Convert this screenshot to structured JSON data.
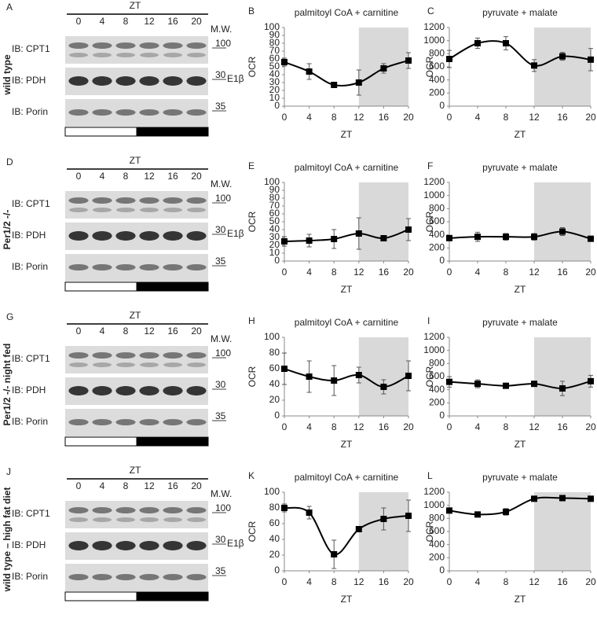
{
  "blots": [
    {
      "letter": "A",
      "side_label": "wild type",
      "zt_label": "ZT",
      "lanes": [
        "0",
        "4",
        "8",
        "12",
        "16",
        "20"
      ],
      "mw_label": "M.W.",
      "rows": [
        {
          "label": "IB: CPT1",
          "mw": "100"
        },
        {
          "label": "IB: PDH",
          "mw": "30",
          "extra": "E1β"
        },
        {
          "label": "IB: Porin",
          "mw": "35"
        }
      ]
    },
    {
      "letter": "D",
      "side_label": "Per1/2 -/-",
      "zt_label": "ZT",
      "lanes": [
        "0",
        "4",
        "8",
        "12",
        "16",
        "20"
      ],
      "mw_label": "M.W.",
      "rows": [
        {
          "label": "IB: CPT1",
          "mw": "100"
        },
        {
          "label": "IB: PDH",
          "mw": "30",
          "extra": "E1β"
        },
        {
          "label": "IB: Porin",
          "mw": "35"
        }
      ]
    },
    {
      "letter": "G",
      "side_label": "Per1/2 -/- night fed",
      "zt_label": "ZT",
      "lanes": [
        "0",
        "4",
        "8",
        "12",
        "16",
        "20"
      ],
      "mw_label": "M.W.",
      "rows": [
        {
          "label": "IB: CPT1",
          "mw": "100"
        },
        {
          "label": "IB: PDH",
          "mw": "30"
        },
        {
          "label": "IB: Porin",
          "mw": "35"
        }
      ]
    },
    {
      "letter": "J",
      "side_label": "wild type – high fat diet",
      "zt_label": "ZT",
      "lanes": [
        "0",
        "4",
        "8",
        "12",
        "16",
        "20"
      ],
      "mw_label": "M.W.",
      "rows": [
        {
          "label": "IB: CPT1",
          "mw": "100"
        },
        {
          "label": "IB: PDH",
          "mw": "30",
          "extra": "E1β"
        },
        {
          "label": "IB: Porin",
          "mw": "35"
        }
      ]
    }
  ],
  "chart_data": [
    {
      "type": "line",
      "letter": "B",
      "title": "palmitoyl CoA + carnitine",
      "ylabel": "OCR",
      "xlabel": "ZT",
      "x": [
        0,
        4,
        8,
        12,
        16,
        20
      ],
      "values": [
        56,
        44,
        27,
        30,
        48,
        58
      ],
      "errors": [
        5,
        10,
        3,
        16,
        6,
        10
      ],
      "xlim": [
        0,
        20
      ],
      "xticks": [
        0,
        4,
        8,
        12,
        16,
        20
      ],
      "ylim": [
        0,
        100
      ],
      "yticks": [
        0,
        10,
        20,
        30,
        40,
        50,
        60,
        70,
        80,
        90,
        100
      ],
      "shaded": [
        12,
        20
      ],
      "color": "#000000"
    },
    {
      "type": "line",
      "letter": "C",
      "title": "pyruvate + malate",
      "ylabel": "OCR",
      "xlabel": "ZT",
      "x": [
        0,
        4,
        8,
        12,
        16,
        20
      ],
      "values": [
        720,
        960,
        960,
        620,
        760,
        710
      ],
      "errors": [
        130,
        80,
        100,
        90,
        60,
        170
      ],
      "xlim": [
        0,
        20
      ],
      "xticks": [
        0,
        4,
        8,
        12,
        16,
        20
      ],
      "ylim": [
        0,
        1200
      ],
      "yticks": [
        0,
        200,
        400,
        600,
        800,
        1000,
        1200
      ],
      "shaded": [
        12,
        20
      ],
      "color": "#000000"
    },
    {
      "type": "line",
      "letter": "E",
      "title": "palmitoyl CoA + carnitine",
      "ylabel": "OCR",
      "xlabel": "ZT",
      "x": [
        0,
        4,
        8,
        12,
        16,
        20
      ],
      "values": [
        25,
        26,
        28,
        35,
        29,
        40
      ],
      "errors": [
        6,
        8,
        12,
        20,
        3,
        14
      ],
      "xlim": [
        0,
        20
      ],
      "xticks": [
        0,
        4,
        8,
        12,
        16,
        20
      ],
      "ylim": [
        0,
        100
      ],
      "yticks": [
        0,
        10,
        20,
        30,
        40,
        50,
        60,
        70,
        80,
        90,
        100
      ],
      "shaded": [
        12,
        20
      ],
      "color": "#000000"
    },
    {
      "type": "line",
      "letter": "F",
      "title": "pyruvate + malate",
      "ylabel": "OCR",
      "xlabel": "ZT",
      "x": [
        0,
        4,
        8,
        12,
        16,
        20
      ],
      "values": [
        350,
        370,
        370,
        370,
        450,
        340
      ],
      "errors": [
        40,
        70,
        50,
        50,
        60,
        20
      ],
      "xlim": [
        0,
        20
      ],
      "xticks": [
        0,
        4,
        8,
        12,
        16,
        20
      ],
      "ylim": [
        0,
        1200
      ],
      "yticks": [
        0,
        200,
        400,
        600,
        800,
        1000,
        1200
      ],
      "shaded": [
        12,
        20
      ],
      "color": "#000000"
    },
    {
      "type": "line",
      "letter": "H",
      "title": "palmitoyl CoA + carnitine",
      "ylabel": "OCR",
      "xlabel": "ZT",
      "x": [
        0,
        4,
        8,
        12,
        16,
        20
      ],
      "values": [
        60,
        50,
        45,
        52,
        37,
        51
      ],
      "errors": [
        20,
        20,
        19,
        10,
        9,
        19
      ],
      "xlim": [
        0,
        20
      ],
      "xticks": [
        0,
        4,
        8,
        12,
        16,
        20
      ],
      "ylim": [
        0,
        100
      ],
      "yticks": [
        0,
        20,
        40,
        60,
        80,
        100
      ],
      "shaded": [
        12,
        20
      ],
      "color": "#000000"
    },
    {
      "type": "line",
      "letter": "I",
      "title": "pyruvate + malate",
      "ylabel": "OCR",
      "xlabel": "ZT",
      "x": [
        0,
        4,
        8,
        12,
        16,
        20
      ],
      "values": [
        520,
        490,
        460,
        490,
        420,
        530
      ],
      "errors": [
        80,
        60,
        30,
        30,
        110,
        90
      ],
      "xlim": [
        0,
        20
      ],
      "xticks": [
        0,
        4,
        8,
        12,
        16,
        20
      ],
      "ylim": [
        0,
        1200
      ],
      "yticks": [
        0,
        200,
        400,
        600,
        800,
        1000,
        1200
      ],
      "shaded": [
        12,
        20
      ],
      "color": "#000000"
    },
    {
      "type": "line",
      "letter": "K",
      "title": "palmitoyl CoA + carnitine",
      "ylabel": "OCR",
      "xlabel": "ZT",
      "x": [
        0,
        4,
        8,
        12,
        16,
        20
      ],
      "values": [
        80,
        74,
        21,
        53,
        66,
        70
      ],
      "errors": [
        5,
        8,
        18,
        3,
        14,
        20
      ],
      "xlim": [
        0,
        20
      ],
      "xticks": [
        0,
        4,
        8,
        12,
        16,
        20
      ],
      "ylim": [
        0,
        100
      ],
      "yticks": [
        0,
        20,
        40,
        60,
        80,
        100
      ],
      "shaded": [
        12,
        20
      ],
      "color": "#000000"
    },
    {
      "type": "line",
      "letter": "L",
      "title": "pyruvate + malate",
      "ylabel": "OCR",
      "xlabel": "ZT",
      "x": [
        0,
        4,
        8,
        12,
        16,
        20
      ],
      "values": [
        920,
        860,
        900,
        1100,
        1110,
        1100
      ],
      "errors": [
        40,
        20,
        50,
        20,
        20,
        20
      ],
      "xlim": [
        0,
        20
      ],
      "xticks": [
        0,
        4,
        8,
        12,
        16,
        20
      ],
      "ylim": [
        0,
        1200
      ],
      "yticks": [
        0,
        200,
        400,
        600,
        800,
        1000,
        1200
      ],
      "shaded": [
        12,
        20
      ],
      "color": "#000000"
    }
  ]
}
